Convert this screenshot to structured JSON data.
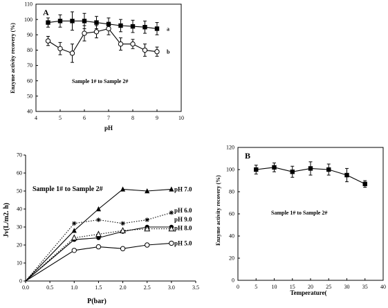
{
  "chart_data": [
    {
      "panel": "A",
      "type": "line",
      "title": "",
      "xlabel": "pH",
      "ylabel": "Enzyme activity recovery (%)",
      "xlim": [
        4,
        10
      ],
      "ylim": [
        40,
        110
      ],
      "xticks": [
        "4",
        "5",
        "6",
        "7",
        "8",
        "9",
        "10"
      ],
      "yticks": [
        "40",
        "50",
        "60",
        "70",
        "80",
        "90",
        "100",
        "110"
      ],
      "annotation": "Sample 1# to Sample 2#",
      "series": [
        {
          "name": "a",
          "marker": "filled-square",
          "x": [
            4.5,
            5.0,
            5.5,
            6.0,
            6.5,
            7.0,
            7.5,
            8.0,
            8.5,
            9.0
          ],
          "y": [
            98,
            99,
            99,
            99,
            98,
            97,
            96,
            95.5,
            95,
            94
          ],
          "err": [
            3,
            4,
            6,
            5,
            4,
            4,
            4,
            4,
            4,
            4
          ]
        },
        {
          "name": "b",
          "marker": "open-circle",
          "x": [
            4.5,
            5.0,
            5.5,
            6.0,
            6.5,
            7.0,
            7.5,
            8.0,
            8.5,
            9.0
          ],
          "y": [
            86,
            81,
            78,
            91,
            92,
            94,
            84,
            84,
            80,
            79
          ],
          "err": [
            3,
            4,
            6,
            5,
            4,
            4,
            4,
            3,
            4,
            3
          ]
        }
      ]
    },
    {
      "panel": "",
      "type": "line",
      "title": "",
      "xlabel": "P(bar)",
      "ylabel": "Jv(L/m2. h)",
      "xlim": [
        0,
        3.5
      ],
      "ylim": [
        0,
        70
      ],
      "xticks": [
        "0.0",
        "0.5",
        "1.0",
        "1.5",
        "2.0",
        "2.5",
        "3.0",
        "3.5"
      ],
      "yticks": [
        "0",
        "10",
        "20",
        "30",
        "40",
        "50",
        "60",
        "70"
      ],
      "annotation": "Sample 1# to Sample 2#",
      "series": [
        {
          "name": "pH 7.0",
          "marker": "filled-triangle",
          "line": "solid",
          "x": [
            0,
            1.0,
            1.5,
            2.0,
            2.5,
            3.0
          ],
          "y": [
            0,
            28,
            40,
            51,
            50,
            51
          ]
        },
        {
          "name": "pH 6.0",
          "marker": "star",
          "line": "dotted",
          "x": [
            0,
            1.0,
            1.5,
            2.0,
            2.5,
            3.0
          ],
          "y": [
            0,
            32,
            34,
            32,
            34,
            38
          ]
        },
        {
          "name": "pH 9.0",
          "marker": "filled-circle",
          "line": "solid",
          "x": [
            0,
            1.0,
            1.5,
            2.0,
            2.5,
            3.0
          ],
          "y": [
            0,
            23,
            24,
            27.5,
            30,
            30
          ]
        },
        {
          "name": "pH 8.0",
          "marker": "open-triangle",
          "line": "dotted",
          "x": [
            0,
            1.0,
            1.5,
            2.0,
            2.5,
            3.0
          ],
          "y": [
            0,
            24,
            26,
            28,
            29,
            29
          ]
        },
        {
          "name": "pH 5.0",
          "marker": "open-circle",
          "line": "solid",
          "x": [
            0,
            1.0,
            1.5,
            2.0,
            2.5,
            3.0
          ],
          "y": [
            0,
            17,
            19,
            18,
            20,
            21
          ]
        }
      ]
    },
    {
      "panel": "B",
      "type": "line",
      "title": "",
      "xlabel": "Temperature(",
      "ylabel": "Enzyme activity recovery (%)",
      "xlim": [
        0,
        40
      ],
      "ylim": [
        0,
        120
      ],
      "xticks": [
        "0",
        "5",
        "10",
        "15",
        "20",
        "25",
        "30",
        "35",
        "40"
      ],
      "yticks": [
        "0",
        "20",
        "40",
        "60",
        "80",
        "100",
        "120"
      ],
      "annotation": "Sample 1# to Sample 2#",
      "series": [
        {
          "name": "",
          "marker": "filled-square",
          "x": [
            5,
            10,
            15,
            20,
            25,
            30,
            35
          ],
          "y": [
            100,
            102,
            98,
            101,
            100,
            95,
            87
          ],
          "err": [
            4,
            4,
            5,
            6,
            5,
            6,
            3
          ]
        }
      ]
    }
  ]
}
